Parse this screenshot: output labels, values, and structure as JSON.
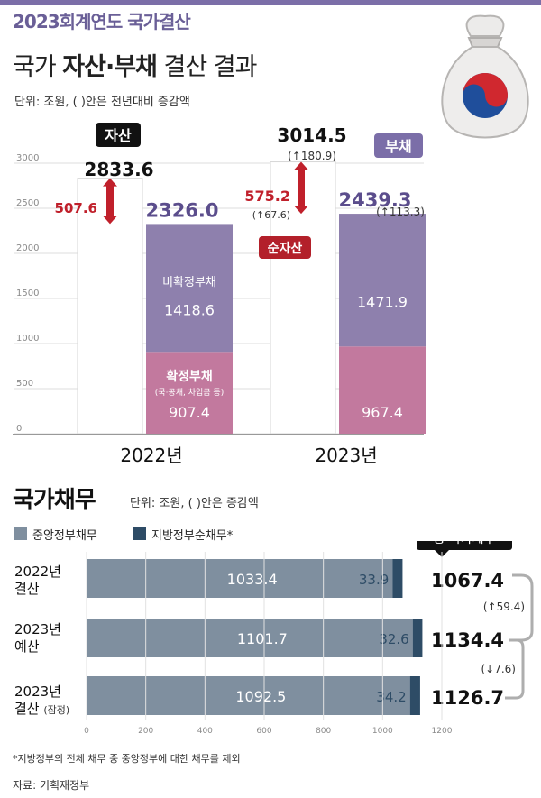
{
  "header": {
    "series_tag": "2023회계연도 국가결산",
    "title_prefix": "국가 ",
    "title_bold": "자산·부채",
    "title_suffix": " 결산 결과",
    "unit_note": "단위: 조원, ( )안은 전년대비 증감액"
  },
  "colors": {
    "accent_purple": "#7b6ea8",
    "liability_other": "#8e80ad",
    "liability_fixed": "#c2799e",
    "increase_red": "#c0202b",
    "decrease_blue": "#2f7fc1",
    "central_debt": "#7f8f9f",
    "local_debt": "#2e4c66"
  },
  "chart_data": [
    {
      "type": "bar",
      "title": "국가 자산·부채 결산 결과",
      "unit": "조원",
      "categories": [
        "2022년",
        "2023년"
      ],
      "ylim": [
        0,
        3000
      ],
      "yticks": [
        0,
        500,
        1000,
        1500,
        2000,
        2500,
        3000
      ],
      "tick_labels": [
        "0",
        "500",
        "1000",
        "1500",
        "2000",
        "2500",
        "3000"
      ],
      "assets": {
        "label": "자산",
        "values": [
          2833.6,
          3014.5
        ],
        "value_labels": [
          "2833.6",
          "3014.5"
        ],
        "change_labels": [
          "",
          "(↑180.9)"
        ]
      },
      "liabilities": {
        "label": "부채",
        "totals": [
          2326.0,
          2439.3
        ],
        "total_labels": [
          "2326.0",
          "2439.3"
        ],
        "change_labels": [
          "",
          "(↑113.3)"
        ]
      },
      "series": [
        {
          "name": "확정부채",
          "note": "(국·공채, 차입금 등)",
          "values": [
            907.4,
            967.4
          ],
          "value_labels": [
            "907.4",
            "967.4"
          ]
        },
        {
          "name": "비확정부채",
          "values": [
            1418.6,
            1471.9
          ],
          "value_labels": [
            "1418.6",
            "1471.9"
          ]
        }
      ],
      "net_assets": {
        "label": "순자산",
        "values": [
          507.6,
          575.2
        ],
        "value_labels": [
          "507.6",
          "575.2"
        ],
        "change_labels": [
          "",
          "(↑67.6)"
        ]
      }
    },
    {
      "type": "bar",
      "orientation": "horizontal",
      "stacked": true,
      "title": "국가채무",
      "unit_note": "단위: 조원, ( )안은 증감액",
      "xlim": [
        0,
        1200
      ],
      "xticks": [
        0,
        200,
        400,
        600,
        800,
        1000,
        1200
      ],
      "tick_labels": [
        "0",
        "200",
        "400",
        "600",
        "800",
        "1000",
        "1200"
      ],
      "categories": [
        {
          "line1": "2022년",
          "line2": "결산",
          "note": ""
        },
        {
          "line1": "2023년",
          "line2": "예산",
          "note": ""
        },
        {
          "line1": "2023년",
          "line2": "결산",
          "note": "(잠정)"
        }
      ],
      "series": [
        {
          "name": "중앙정부채무",
          "values": [
            1033.4,
            1101.7,
            1092.5
          ],
          "value_labels": [
            "1033.4",
            "1101.7",
            "1092.5"
          ]
        },
        {
          "name": "지방정부순채무*",
          "values": [
            33.9,
            32.6,
            34.2
          ],
          "value_labels": [
            "33.9",
            "32.6",
            "34.2"
          ]
        }
      ],
      "total_label": "총 국가채무",
      "totals": [
        1067.4,
        1134.4,
        1126.7
      ],
      "total_labels": [
        "1067.4",
        "1134.4",
        "1126.7"
      ],
      "changes": [
        "(↑59.4)",
        "(↓7.6)"
      ]
    }
  ],
  "debt_section": {
    "title": "국가채무",
    "unit_note": "단위: 조원, ( )안은 증감액"
  },
  "footnote": "*지방정부의 전체 채무 중 중앙정부에 대한 채무를 제외",
  "source": "자료: 기획재정부"
}
